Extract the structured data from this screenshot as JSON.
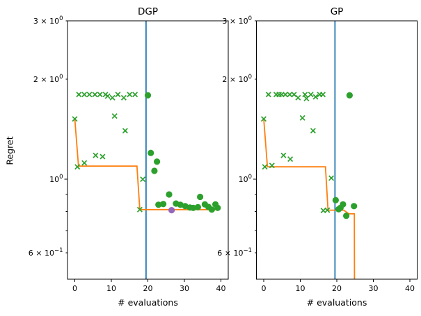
{
  "figure": {
    "ylabel": "Regret",
    "background": "#ffffff",
    "text_color": "#000000",
    "axis_color": "#000000",
    "colors": {
      "vline_blue": "#1f77b4",
      "regret_orange": "#ff7f0e",
      "scatter_green": "#2ca02c",
      "incumbent_purple": "#9467bd"
    },
    "x_ticks": [
      {
        "value": 0,
        "label": "0"
      },
      {
        "value": 10,
        "label": "10"
      },
      {
        "value": 20,
        "label": "20"
      },
      {
        "value": 30,
        "label": "30"
      },
      {
        "value": 40,
        "label": "40"
      }
    ],
    "y_ticks": [
      {
        "value": 3.0,
        "base": "3 × 10",
        "exp": "0",
        "major": false
      },
      {
        "value": 2.0,
        "base": "2 × 10",
        "exp": "0",
        "major": false
      },
      {
        "value": 1.0,
        "base": "10",
        "exp": "0",
        "major": true
      },
      {
        "value": 0.9,
        "major": false
      },
      {
        "value": 0.8,
        "major": false
      },
      {
        "value": 0.7,
        "major": false
      },
      {
        "value": 0.6,
        "base": "6 × 10",
        "exp": "−1",
        "major": false
      }
    ]
  },
  "chart_data": [
    {
      "type": "scatter",
      "title": "DGP",
      "xlabel": "# evaluations",
      "ylabel": "Regret",
      "yscale": "log",
      "xlim": [
        -2,
        42
      ],
      "ylim": [
        0.5,
        3.0
      ],
      "grid": false,
      "legend": "none",
      "vline": {
        "x": 19.5,
        "color": "#1f77b4"
      },
      "series": [
        {
          "name": "best-regret-line",
          "kind": "line",
          "color": "#ff7f0e",
          "points": [
            [
              0,
              1.52
            ],
            [
              1,
              1.095
            ],
            [
              17,
              1.095
            ],
            [
              17.8,
              0.81
            ],
            [
              39.5,
              0.81
            ]
          ]
        },
        {
          "name": "incumbent-marker",
          "kind": "circle",
          "color": "#9467bd",
          "points": [
            [
              26.5,
              0.807
            ]
          ]
        },
        {
          "name": "initial-evaluations-x",
          "kind": "x",
          "color": "#2ca02c",
          "points": [
            [
              0,
              1.52
            ],
            [
              1.1,
              1.8
            ],
            [
              2.6,
              1.8
            ],
            [
              4.0,
              1.8
            ],
            [
              5.5,
              1.8
            ],
            [
              6.9,
              1.8
            ],
            [
              8.4,
              1.8
            ],
            [
              9.0,
              1.78
            ],
            [
              10.3,
              1.76
            ],
            [
              11.8,
              1.8
            ],
            [
              13.4,
              1.76
            ],
            [
              15.0,
              1.8
            ],
            [
              16.5,
              1.8
            ],
            [
              0.7,
              1.09
            ],
            [
              2.6,
              1.12
            ],
            [
              5.7,
              1.18
            ],
            [
              7.6,
              1.17
            ],
            [
              10.9,
              1.55
            ],
            [
              13.8,
              1.4
            ],
            [
              17.8,
              0.81
            ],
            [
              18.6,
              1.0
            ]
          ]
        },
        {
          "name": "bo-evaluations-circles",
          "kind": "circle",
          "color": "#2ca02c",
          "points": [
            [
              20,
              1.79
            ],
            [
              20.8,
              1.2
            ],
            [
              22.5,
              1.13
            ],
            [
              21.8,
              1.06
            ],
            [
              25.8,
              0.9
            ],
            [
              22.9,
              0.838
            ],
            [
              24.2,
              0.842
            ],
            [
              27.7,
              0.845
            ],
            [
              28.9,
              0.838
            ],
            [
              30.2,
              0.83
            ],
            [
              31.5,
              0.822
            ],
            [
              32.4,
              0.82
            ],
            [
              33.7,
              0.824
            ],
            [
              34.3,
              0.885
            ],
            [
              35.6,
              0.84
            ],
            [
              36.6,
              0.825
            ],
            [
              37.5,
              0.81
            ],
            [
              38.5,
              0.84
            ],
            [
              39.1,
              0.82
            ]
          ]
        }
      ]
    },
    {
      "type": "scatter",
      "title": "GP",
      "xlabel": "# evaluations",
      "ylabel": "Regret",
      "yscale": "log",
      "xlim": [
        -2,
        42
      ],
      "ylim": [
        0.5,
        3.0
      ],
      "grid": false,
      "legend": "none",
      "vline": {
        "x": 19.5,
        "color": "#1f77b4"
      },
      "series": [
        {
          "name": "best-regret-line",
          "kind": "line",
          "color": "#ff7f0e",
          "points": [
            [
              0,
              1.52
            ],
            [
              1,
              1.09
            ],
            [
              16.9,
              1.09
            ],
            [
              17.6,
              0.807
            ],
            [
              21.9,
              0.807
            ],
            [
              23.3,
              0.787
            ],
            [
              24.8,
              0.787
            ],
            [
              24.85,
              0.4
            ]
          ]
        },
        {
          "name": "initial-evaluations-x",
          "kind": "x",
          "color": "#2ca02c",
          "points": [
            [
              0,
              1.52
            ],
            [
              1.3,
              1.8
            ],
            [
              3.4,
              1.8
            ],
            [
              4.2,
              1.8
            ],
            [
              4.9,
              1.8
            ],
            [
              5.9,
              1.8
            ],
            [
              7.1,
              1.8
            ],
            [
              8.3,
              1.8
            ],
            [
              9.4,
              1.76
            ],
            [
              11.3,
              1.8
            ],
            [
              11.7,
              1.75
            ],
            [
              12.9,
              1.8
            ],
            [
              14.2,
              1.77
            ],
            [
              15.3,
              1.8
            ],
            [
              16.2,
              1.8
            ],
            [
              0.3,
              1.09
            ],
            [
              2.25,
              1.1
            ],
            [
              5.4,
              1.18
            ],
            [
              7.25,
              1.15
            ],
            [
              10.6,
              1.53
            ],
            [
              13.5,
              1.4
            ],
            [
              16.3,
              0.805
            ],
            [
              17.4,
              0.807
            ],
            [
              18.5,
              1.008
            ]
          ]
        },
        {
          "name": "bo-evaluations-circles",
          "kind": "circle",
          "color": "#2ca02c",
          "points": [
            [
              23.5,
              1.79
            ],
            [
              19.7,
              0.865
            ],
            [
              21.0,
              0.82
            ],
            [
              21.7,
              0.84
            ],
            [
              20.5,
              0.812
            ],
            [
              24.7,
              0.83
            ],
            [
              22.6,
              0.776
            ]
          ]
        }
      ]
    }
  ]
}
